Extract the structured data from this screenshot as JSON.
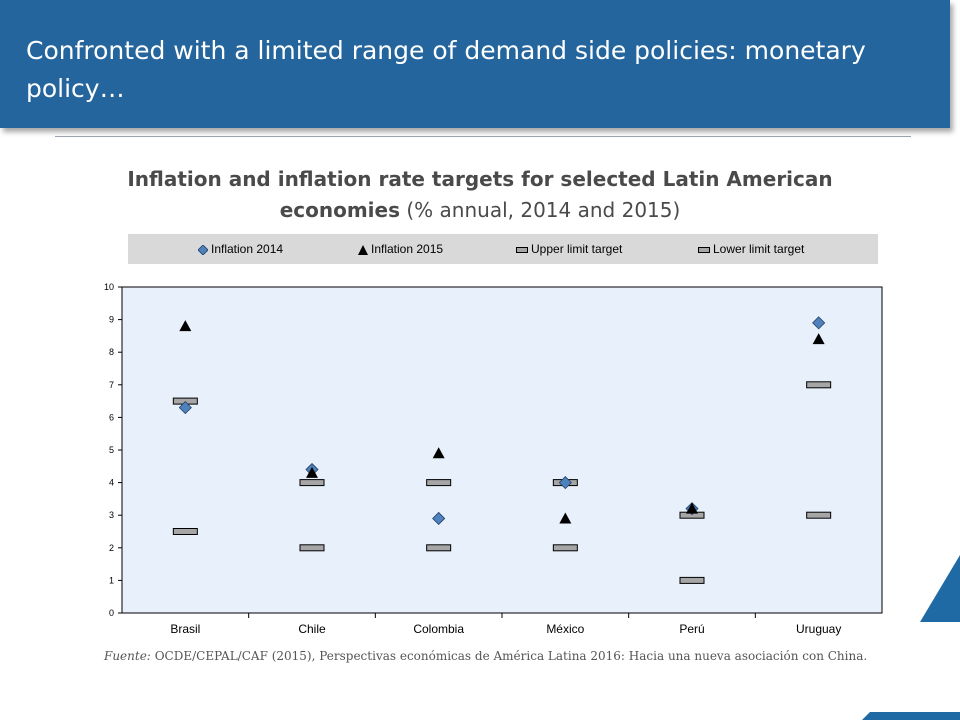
{
  "header": {
    "title": "Confronted with a limited range of demand side policies: monetary policy…"
  },
  "chart_data": {
    "type": "scatter",
    "title": "Inflation and inflation rate targets for selected Latin American economies",
    "subtitle": "(% annual, 2014 and 2015)",
    "categories": [
      "Brasil",
      "Chile",
      "Colombia",
      "México",
      "Perú",
      "Uruguay"
    ],
    "series": [
      {
        "name": "Inflation 2014",
        "marker": "diamond",
        "color": "#4f81bd",
        "values": [
          6.3,
          4.4,
          2.9,
          4.0,
          3.2,
          8.9
        ]
      },
      {
        "name": "Inflation 2015",
        "marker": "triangle",
        "color": "#000000",
        "values": [
          8.8,
          4.3,
          4.9,
          2.9,
          3.2,
          8.4
        ]
      },
      {
        "name": "Upper limit target",
        "marker": "dash",
        "color": "#a6a6a6",
        "values": [
          6.5,
          4.0,
          4.0,
          4.0,
          3.0,
          7.0
        ]
      },
      {
        "name": "Lower limit target",
        "marker": "dash",
        "color": "#a6a6a6",
        "values": [
          2.5,
          2.0,
          2.0,
          2.0,
          1.0,
          3.0
        ]
      }
    ],
    "ylim": [
      0,
      10
    ],
    "yticks": [
      "0",
      "1",
      "2",
      "3",
      "4",
      "5",
      "6",
      "7",
      "8",
      "9",
      "10"
    ],
    "xlabel": "",
    "ylabel": "",
    "legend": "top",
    "plot_background": "#e8f1fb",
    "grid": false
  },
  "source": {
    "label": "Fuente:",
    "text": "OCDE/CEPAL/CAF (2015), Perspectivas económicas de América Latina 2016: Hacia una nueva asociación con China."
  },
  "colors": {
    "header": "#25659d",
    "accent": "#1f6aa5"
  }
}
